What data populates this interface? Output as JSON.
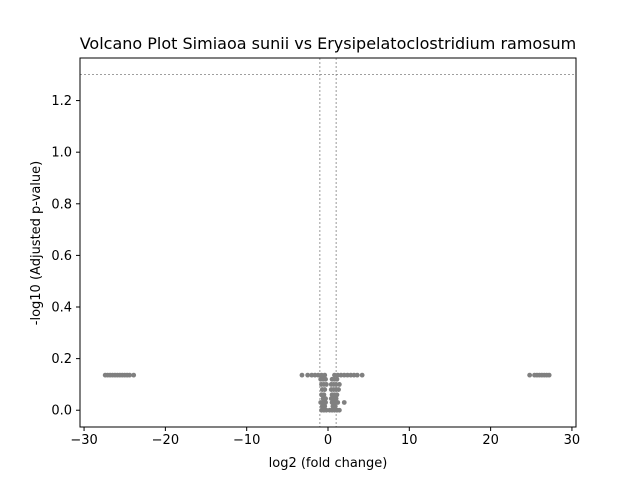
{
  "chart_data": {
    "type": "scatter",
    "title": "Volcano Plot Simiaoa sunii vs Erysipelatoclostridium ramosum",
    "xlabel": "log2 (fold change)",
    "ylabel": "-log10 (Adjusted p-value)",
    "xlim": [
      -30.5,
      30.5
    ],
    "ylim": [
      -0.065,
      1.365
    ],
    "xticks": [
      -30,
      -20,
      -10,
      0,
      10,
      20,
      30
    ],
    "xtick_labels": [
      "−30",
      "−20",
      "−10",
      "0",
      "10",
      "20",
      "30"
    ],
    "yticks": [
      0.0,
      0.2,
      0.4,
      0.6,
      0.8,
      1.0,
      1.2
    ],
    "ytick_labels": [
      "0.0",
      "0.2",
      "0.4",
      "0.6",
      "0.8",
      "1.0",
      "1.2"
    ],
    "threshold_lines": {
      "horizontal_y": 1.301,
      "vertical_x": [
        -1,
        1
      ]
    },
    "grid": false,
    "point_color": "#808080",
    "line_color": "#808080",
    "series": [
      {
        "points": [
          {
            "x": -27.4,
            "y": 0.136
          },
          {
            "x": -27.1,
            "y": 0.136
          },
          {
            "x": -26.8,
            "y": 0.136
          },
          {
            "x": -26.5,
            "y": 0.136
          },
          {
            "x": -26.2,
            "y": 0.136
          },
          {
            "x": -25.9,
            "y": 0.136
          },
          {
            "x": -25.6,
            "y": 0.136
          },
          {
            "x": -25.3,
            "y": 0.136
          },
          {
            "x": -25.0,
            "y": 0.136
          },
          {
            "x": -24.7,
            "y": 0.136
          },
          {
            "x": -24.4,
            "y": 0.136
          },
          {
            "x": -23.9,
            "y": 0.136
          },
          {
            "x": 24.8,
            "y": 0.136
          },
          {
            "x": 25.4,
            "y": 0.136
          },
          {
            "x": 25.7,
            "y": 0.136
          },
          {
            "x": 26.0,
            "y": 0.136
          },
          {
            "x": 26.3,
            "y": 0.136
          },
          {
            "x": 26.6,
            "y": 0.136
          },
          {
            "x": 26.9,
            "y": 0.136
          },
          {
            "x": 27.2,
            "y": 0.136
          },
          {
            "x": -3.2,
            "y": 0.136
          },
          {
            "x": -2.5,
            "y": 0.136
          },
          {
            "x": -2.0,
            "y": 0.136
          },
          {
            "x": -1.6,
            "y": 0.136
          },
          {
            "x": -1.2,
            "y": 0.136
          },
          {
            "x": -0.8,
            "y": 0.136
          },
          {
            "x": -0.4,
            "y": 0.136
          },
          {
            "x": 0.8,
            "y": 0.136
          },
          {
            "x": 1.2,
            "y": 0.136
          },
          {
            "x": 1.6,
            "y": 0.136
          },
          {
            "x": 2.0,
            "y": 0.136
          },
          {
            "x": 2.4,
            "y": 0.136
          },
          {
            "x": 2.8,
            "y": 0.136
          },
          {
            "x": 3.2,
            "y": 0.136
          },
          {
            "x": 3.6,
            "y": 0.136
          },
          {
            "x": 4.2,
            "y": 0.136
          },
          {
            "x": -0.9,
            "y": 0.12
          },
          {
            "x": -0.6,
            "y": 0.12
          },
          {
            "x": -0.3,
            "y": 0.12
          },
          {
            "x": 0.5,
            "y": 0.12
          },
          {
            "x": 0.8,
            "y": 0.12
          },
          {
            "x": 1.1,
            "y": 0.12
          },
          {
            "x": -0.8,
            "y": 0.1
          },
          {
            "x": -0.5,
            "y": 0.1
          },
          {
            "x": -0.2,
            "y": 0.1
          },
          {
            "x": 0.4,
            "y": 0.1
          },
          {
            "x": 0.7,
            "y": 0.1
          },
          {
            "x": 1.0,
            "y": 0.1
          },
          {
            "x": 1.4,
            "y": 0.1
          },
          {
            "x": -0.7,
            "y": 0.08
          },
          {
            "x": -0.4,
            "y": 0.08
          },
          {
            "x": 0.4,
            "y": 0.08
          },
          {
            "x": 0.7,
            "y": 0.08
          },
          {
            "x": 1.0,
            "y": 0.08
          },
          {
            "x": 1.3,
            "y": 0.08
          },
          {
            "x": -0.8,
            "y": 0.06
          },
          {
            "x": -0.5,
            "y": 0.06
          },
          {
            "x": 0.5,
            "y": 0.06
          },
          {
            "x": 0.8,
            "y": 0.06
          },
          {
            "x": 1.1,
            "y": 0.06
          },
          {
            "x": -0.6,
            "y": 0.045
          },
          {
            "x": -0.3,
            "y": 0.045
          },
          {
            "x": 0.4,
            "y": 0.045
          },
          {
            "x": 0.7,
            "y": 0.045
          },
          {
            "x": 1.0,
            "y": 0.045
          },
          {
            "x": -0.9,
            "y": 0.03
          },
          {
            "x": -0.6,
            "y": 0.03
          },
          {
            "x": -0.3,
            "y": 0.03
          },
          {
            "x": 0.5,
            "y": 0.03
          },
          {
            "x": 0.8,
            "y": 0.03
          },
          {
            "x": 1.2,
            "y": 0.03
          },
          {
            "x": 2.0,
            "y": 0.03
          },
          {
            "x": -0.7,
            "y": 0.015
          },
          {
            "x": -0.4,
            "y": 0.015
          },
          {
            "x": 0.6,
            "y": 0.015
          },
          {
            "x": 0.9,
            "y": 0.015
          },
          {
            "x": -0.8,
            "y": 0.0
          },
          {
            "x": -0.5,
            "y": 0.0
          },
          {
            "x": -0.2,
            "y": 0.0
          },
          {
            "x": 0.2,
            "y": 0.0
          },
          {
            "x": 0.5,
            "y": 0.0
          },
          {
            "x": 0.8,
            "y": 0.0
          },
          {
            "x": 1.1,
            "y": 0.0
          },
          {
            "x": 1.4,
            "y": 0.0
          }
        ]
      }
    ]
  }
}
